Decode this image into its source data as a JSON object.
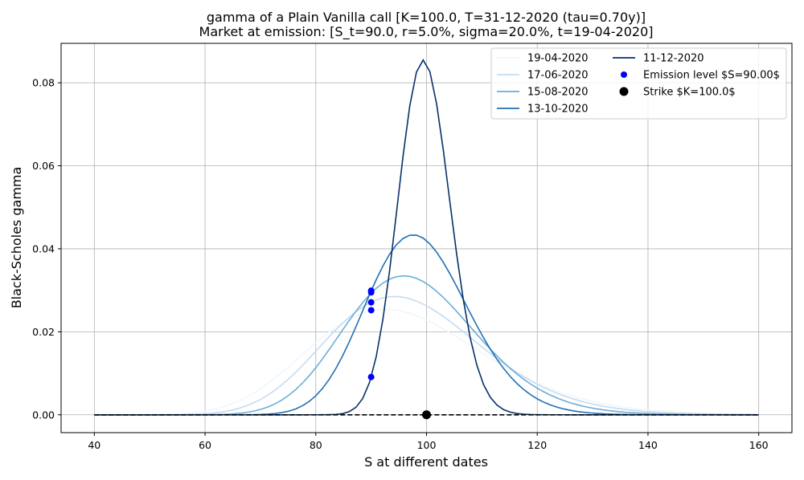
{
  "chart_data": {
    "type": "line",
    "title_line1": "gamma of a Plain Vanilla call [K=100.0, T=31-12-2020 (tau=0.70y)]",
    "title_line2": "Market at emission: [S_t=90.0, r=5.0%, sigma=20.0%, t=19-04-2020]",
    "xlabel": "S at different dates",
    "ylabel": "Black-Scholes gamma",
    "xlim": [
      34,
      166
    ],
    "ylim": [
      -0.0043,
      0.0895
    ],
    "xticks": [
      40,
      60,
      80,
      100,
      120,
      140,
      160
    ],
    "yticks": [
      0.0,
      0.02,
      0.04,
      0.06,
      0.08
    ],
    "ytick_labels": [
      "0.00",
      "0.02",
      "0.04",
      "0.06",
      "0.08"
    ],
    "grid": true,
    "legend_position": "top-right",
    "model": {
      "K": 100.0,
      "r": 0.05,
      "sigma": 0.2
    },
    "s_range": [
      40,
      160
    ],
    "s_points": 100,
    "series": [
      {
        "name": "19-04-2020",
        "tau": 0.7,
        "color": "#f1f6fc"
      },
      {
        "name": "17-06-2020",
        "tau": 0.54,
        "color": "#c6dbef"
      },
      {
        "name": "15-08-2020",
        "tau": 0.38,
        "color": "#6baed6"
      },
      {
        "name": "13-10-2020",
        "tau": 0.22,
        "color": "#2171b5"
      },
      {
        "name": "11-12-2020",
        "tau": 0.055,
        "color": "#08306b"
      }
    ],
    "emission_level": {
      "label": "Emission level $S=90.00$",
      "S": 90.0,
      "gammas": [
        0.0252,
        0.0271,
        0.0295,
        0.0299,
        0.0091
      ],
      "color": "#0000ff"
    },
    "strike": {
      "label": "Strike $K=100.0$",
      "S": 100.0,
      "gamma": 0.0,
      "color": "#000000"
    }
  }
}
